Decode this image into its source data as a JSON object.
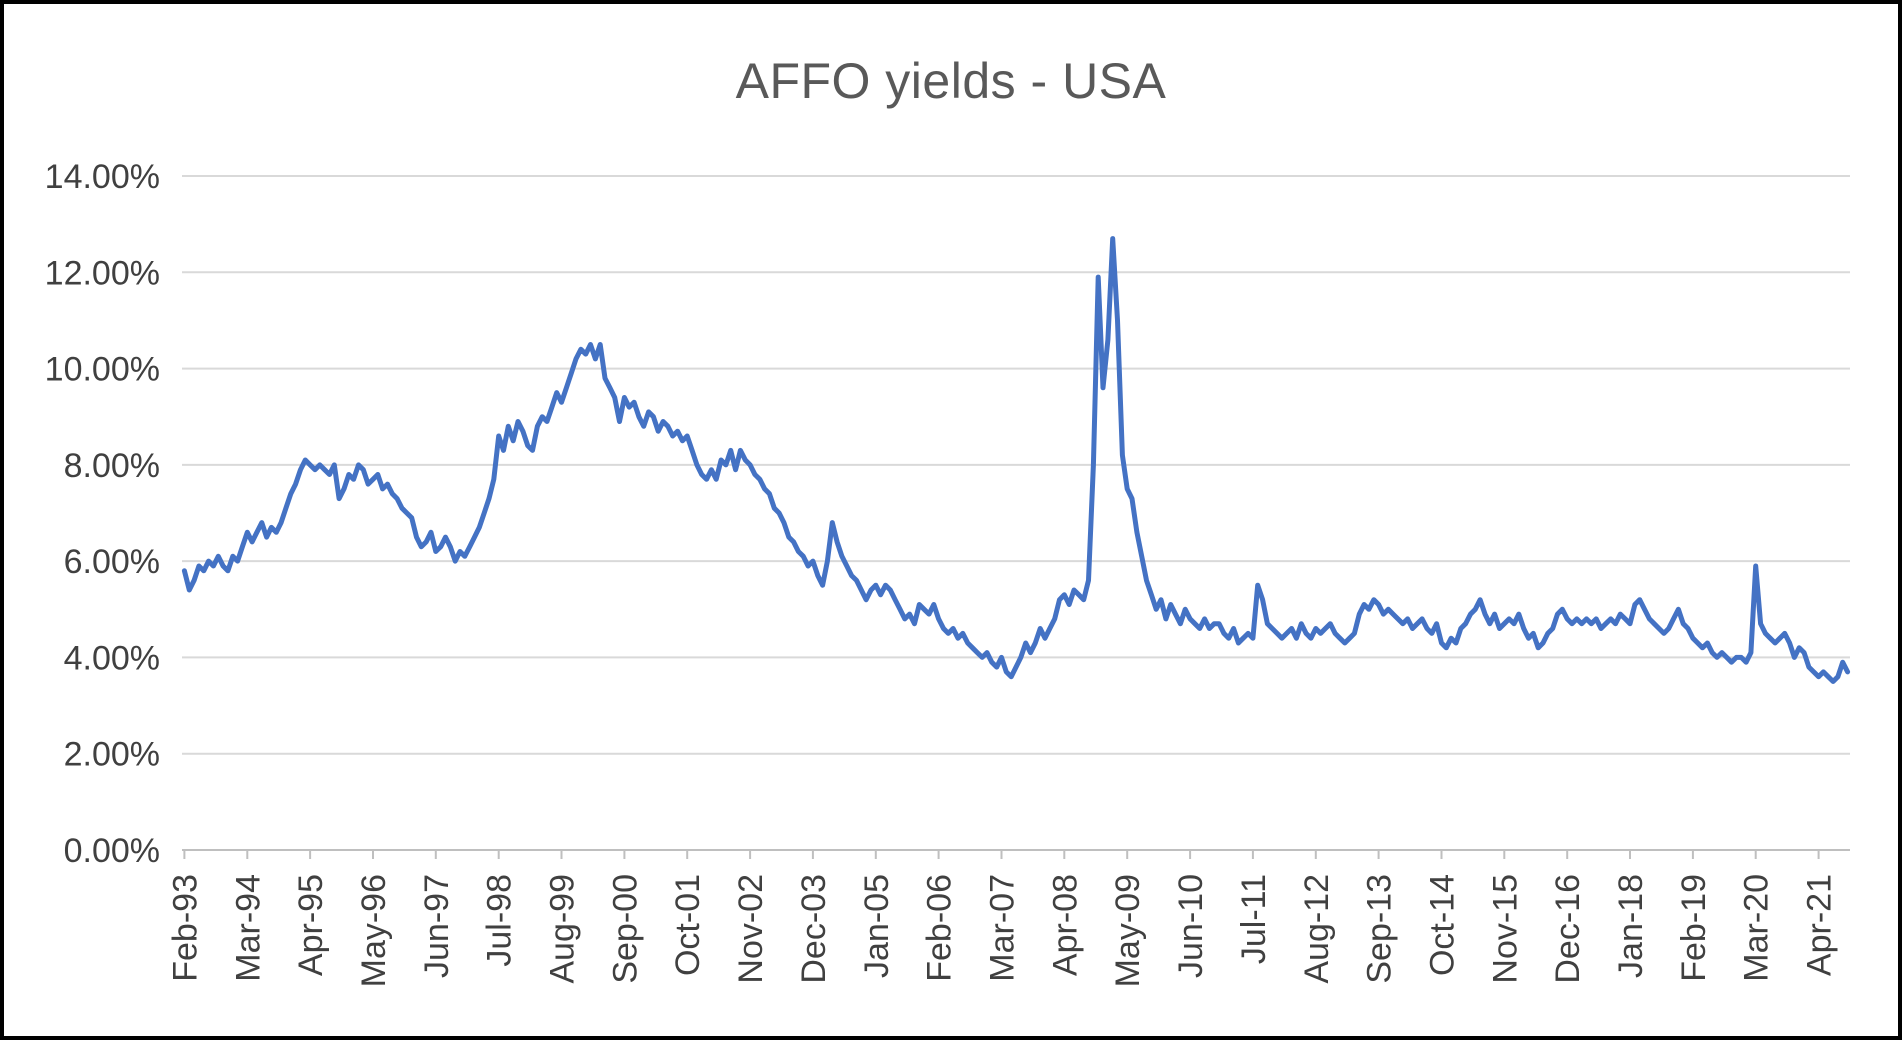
{
  "window": {
    "background_color": "#ffffff",
    "border_color": "#000000"
  },
  "chart_data": {
    "type": "line",
    "title": "AFFO yields - USA",
    "xlabel": "",
    "ylabel": "",
    "legend": "none",
    "grid": "horizontal",
    "series_name": "AFFO yield",
    "series_color": "#4472C4",
    "gridline_color": "#D9D9D9",
    "axis_line_color": "#BFBFBF",
    "axis_text_color": "#404040",
    "title_color": "#595959",
    "ylim": [
      0,
      14
    ],
    "ytick_step": 2,
    "ytick_labels": [
      "0.00%",
      "2.00%",
      "4.00%",
      "6.00%",
      "8.00%",
      "10.00%",
      "12.00%",
      "14.00%"
    ],
    "x_frequency": "monthly",
    "x_start": "Feb-93",
    "x_end": "Oct-21",
    "x_tick_interval": 13,
    "x_tick_labels": [
      "Feb-93",
      "Mar-94",
      "Apr-95",
      "May-96",
      "Jun-97",
      "Jul-98",
      "Aug-99",
      "Sep-00",
      "Oct-01",
      "Nov-02",
      "Dec-03",
      "Jan-05",
      "Feb-06",
      "Mar-07",
      "Apr-08",
      "May-09",
      "Jun-10",
      "Jul-11",
      "Aug-12",
      "Sep-13",
      "Oct-14",
      "Nov-15",
      "Dec-16",
      "Jan-18",
      "Feb-19",
      "Mar-20",
      "Apr-21"
    ],
    "values_unit": "percent",
    "values": [
      5.8,
      5.4,
      5.6,
      5.9,
      5.8,
      6.0,
      5.9,
      6.1,
      5.9,
      5.8,
      6.1,
      6.0,
      6.3,
      6.6,
      6.4,
      6.6,
      6.8,
      6.5,
      6.7,
      6.6,
      6.8,
      7.1,
      7.4,
      7.6,
      7.9,
      8.1,
      8.0,
      7.9,
      8.0,
      7.9,
      7.8,
      8.0,
      7.3,
      7.5,
      7.8,
      7.7,
      8.0,
      7.9,
      7.6,
      7.7,
      7.8,
      7.5,
      7.6,
      7.4,
      7.3,
      7.1,
      7.0,
      6.9,
      6.5,
      6.3,
      6.4,
      6.6,
      6.2,
      6.3,
      6.5,
      6.3,
      6.0,
      6.2,
      6.1,
      6.3,
      6.5,
      6.7,
      7.0,
      7.3,
      7.7,
      8.6,
      8.3,
      8.8,
      8.5,
      8.9,
      8.7,
      8.4,
      8.3,
      8.8,
      9.0,
      8.9,
      9.2,
      9.5,
      9.3,
      9.6,
      9.9,
      10.2,
      10.4,
      10.3,
      10.5,
      10.2,
      10.5,
      9.8,
      9.6,
      9.4,
      8.9,
      9.4,
      9.2,
      9.3,
      9.0,
      8.8,
      9.1,
      9.0,
      8.7,
      8.9,
      8.8,
      8.6,
      8.7,
      8.5,
      8.6,
      8.3,
      8.0,
      7.8,
      7.7,
      7.9,
      7.7,
      8.1,
      8.0,
      8.3,
      7.9,
      8.3,
      8.1,
      8.0,
      7.8,
      7.7,
      7.5,
      7.4,
      7.1,
      7.0,
      6.8,
      6.5,
      6.4,
      6.2,
      6.1,
      5.9,
      6.0,
      5.7,
      5.5,
      6.0,
      6.8,
      6.4,
      6.1,
      5.9,
      5.7,
      5.6,
      5.4,
      5.2,
      5.4,
      5.5,
      5.3,
      5.5,
      5.4,
      5.2,
      5.0,
      4.8,
      4.9,
      4.7,
      5.1,
      5.0,
      4.9,
      5.1,
      4.8,
      4.6,
      4.5,
      4.6,
      4.4,
      4.5,
      4.3,
      4.2,
      4.1,
      4.0,
      4.1,
      3.9,
      3.8,
      4.0,
      3.7,
      3.6,
      3.8,
      4.0,
      4.3,
      4.1,
      4.3,
      4.6,
      4.4,
      4.6,
      4.8,
      5.2,
      5.3,
      5.1,
      5.4,
      5.3,
      5.2,
      5.6,
      8.0,
      11.9,
      9.6,
      10.6,
      12.7,
      11.0,
      8.2,
      7.5,
      7.3,
      6.6,
      6.1,
      5.6,
      5.3,
      5.0,
      5.2,
      4.8,
      5.1,
      4.9,
      4.7,
      5.0,
      4.8,
      4.7,
      4.6,
      4.8,
      4.6,
      4.7,
      4.7,
      4.5,
      4.4,
      4.6,
      4.3,
      4.4,
      4.5,
      4.4,
      5.5,
      5.2,
      4.7,
      4.6,
      4.5,
      4.4,
      4.5,
      4.6,
      4.4,
      4.7,
      4.5,
      4.4,
      4.6,
      4.5,
      4.6,
      4.7,
      4.5,
      4.4,
      4.3,
      4.4,
      4.5,
      4.9,
      5.1,
      5.0,
      5.2,
      5.1,
      4.9,
      5.0,
      4.9,
      4.8,
      4.7,
      4.8,
      4.6,
      4.7,
      4.8,
      4.6,
      4.5,
      4.7,
      4.3,
      4.2,
      4.4,
      4.3,
      4.6,
      4.7,
      4.9,
      5.0,
      5.2,
      4.9,
      4.7,
      4.9,
      4.6,
      4.7,
      4.8,
      4.7,
      4.9,
      4.6,
      4.4,
      4.5,
      4.2,
      4.3,
      4.5,
      4.6,
      4.9,
      5.0,
      4.8,
      4.7,
      4.8,
      4.7,
      4.8,
      4.7,
      4.8,
      4.6,
      4.7,
      4.8,
      4.7,
      4.9,
      4.8,
      4.7,
      5.1,
      5.2,
      5.0,
      4.8,
      4.7,
      4.6,
      4.5,
      4.6,
      4.8,
      5.0,
      4.7,
      4.6,
      4.4,
      4.3,
      4.2,
      4.3,
      4.1,
      4.0,
      4.1,
      4.0,
      3.9,
      4.0,
      4.0,
      3.9,
      4.1,
      5.9,
      4.7,
      4.5,
      4.4,
      4.3,
      4.4,
      4.5,
      4.3,
      4.0,
      4.2,
      4.1,
      3.8,
      3.7,
      3.6,
      3.7,
      3.6,
      3.5,
      3.6,
      3.9,
      3.7
    ]
  }
}
